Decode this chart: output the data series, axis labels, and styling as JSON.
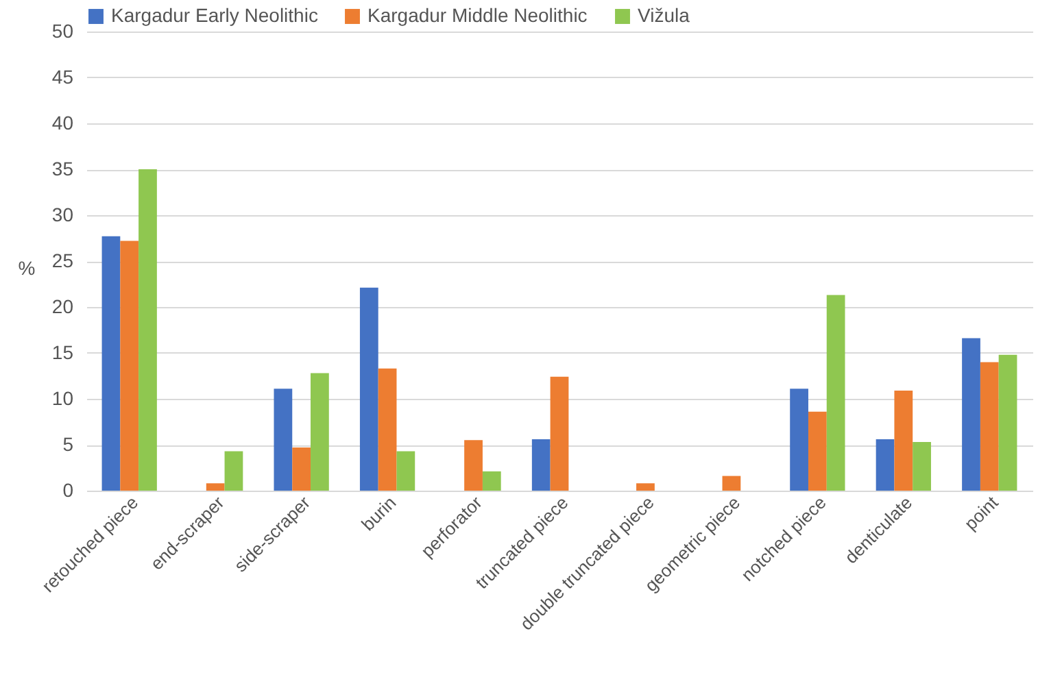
{
  "chart_data": {
    "type": "bar",
    "ylabel": "%",
    "categories": [
      "retouched piece",
      "end-scraper",
      "side-scraper",
      "burin",
      "perforator",
      "truncated piece",
      "double truncated piece",
      "geometric piece",
      "notched piece",
      "denticulate",
      "point"
    ],
    "series": [
      {
        "name": "Kargadur Early Neolithic",
        "color": "#4472c4",
        "values": [
          27.7,
          0,
          11.1,
          22.1,
          0,
          5.6,
          0,
          0,
          11.1,
          5.6,
          16.6
        ]
      },
      {
        "name": "Kargadur Middle Neolithic",
        "color": "#ed7d31",
        "values": [
          27.2,
          0.8,
          4.7,
          13.3,
          5.5,
          12.4,
          0.8,
          1.6,
          8.6,
          10.9,
          14.0
        ]
      },
      {
        "name": "Vižula",
        "color": "#8fc750",
        "values": [
          35.0,
          4.3,
          12.8,
          4.3,
          2.1,
          0,
          0,
          0,
          21.3,
          5.3,
          14.8
        ]
      }
    ],
    "ylim": [
      0,
      50
    ],
    "yticks": [
      0,
      5,
      10,
      15,
      20,
      25,
      30,
      35,
      40,
      45,
      50
    ],
    "grid": "y",
    "legend": "top"
  }
}
